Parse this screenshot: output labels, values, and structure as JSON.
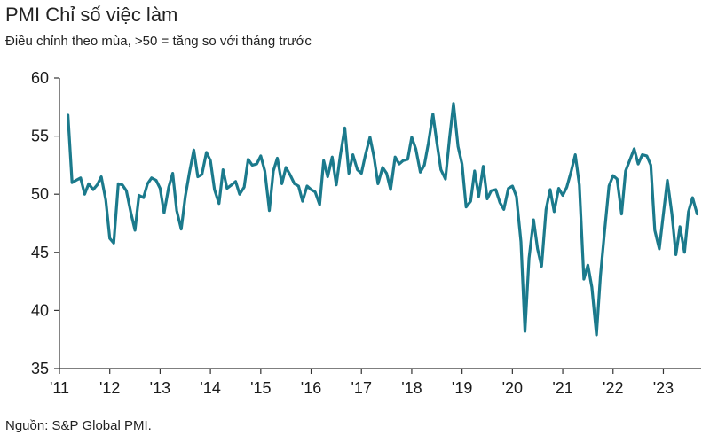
{
  "chart_data": {
    "type": "line",
    "title": "PMI Chỉ số việc làm",
    "subtitle": "Điều chỉnh theo mùa, >50 = tăng so với tháng trước",
    "source": "Nguồn: S&P Global PMI.",
    "xlabel": "",
    "ylabel": "",
    "ylim": [
      35,
      60
    ],
    "xlim": [
      2011.0,
      2023.75
    ],
    "yticks": [
      35,
      40,
      45,
      50,
      55,
      60
    ],
    "xticks": [
      {
        "value": 2011,
        "label": "'11"
      },
      {
        "value": 2012,
        "label": "'12"
      },
      {
        "value": 2013,
        "label": "'13"
      },
      {
        "value": 2014,
        "label": "'14"
      },
      {
        "value": 2015,
        "label": "'15"
      },
      {
        "value": 2016,
        "label": "'16"
      },
      {
        "value": 2017,
        "label": "'17"
      },
      {
        "value": 2018,
        "label": "'18"
      },
      {
        "value": 2019,
        "label": "'19"
      },
      {
        "value": 2020,
        "label": "'20"
      },
      {
        "value": 2021,
        "label": "'21"
      },
      {
        "value": 2022,
        "label": "'22"
      },
      {
        "value": 2023,
        "label": "'23"
      }
    ],
    "grid": false,
    "line_color": "#1b7a8c",
    "series": [
      {
        "x": [
          2011.17,
          2011.25,
          2011.33,
          2011.42,
          2011.5,
          2011.58,
          2011.67,
          2011.75,
          2011.83,
          2011.92,
          2012.0,
          2012.08,
          2012.17,
          2012.25,
          2012.33,
          2012.42,
          2012.5,
          2012.58,
          2012.67,
          2012.75,
          2012.83,
          2012.92,
          2013.0,
          2013.08,
          2013.17,
          2013.25,
          2013.33,
          2013.42,
          2013.5,
          2013.58,
          2013.67,
          2013.75,
          2013.83,
          2013.92,
          2014.0,
          2014.08,
          2014.17,
          2014.25,
          2014.33,
          2014.42,
          2014.5,
          2014.58,
          2014.67,
          2014.75,
          2014.83,
          2014.92,
          2015.0,
          2015.08,
          2015.17,
          2015.25,
          2015.33,
          2015.42,
          2015.5,
          2015.58,
          2015.67,
          2015.75,
          2015.83,
          2015.92,
          2016.0,
          2016.08,
          2016.17,
          2016.25,
          2016.33,
          2016.42,
          2016.5,
          2016.58,
          2016.67,
          2016.75,
          2016.83,
          2016.92,
          2017.0,
          2017.08,
          2017.17,
          2017.25,
          2017.33,
          2017.42,
          2017.5,
          2017.58,
          2017.67,
          2017.75,
          2017.83,
          2017.92,
          2018.0,
          2018.08,
          2018.17,
          2018.25,
          2018.33,
          2018.42,
          2018.5,
          2018.58,
          2018.67,
          2018.75,
          2018.83,
          2018.92,
          2019.0,
          2019.08,
          2019.17,
          2019.25,
          2019.33,
          2019.42,
          2019.5,
          2019.58,
          2019.67,
          2019.75,
          2019.83,
          2019.92,
          2020.0,
          2020.08,
          2020.17,
          2020.25,
          2020.33,
          2020.42,
          2020.5,
          2020.58,
          2020.67,
          2020.75,
          2020.83,
          2020.92,
          2021.0,
          2021.08,
          2021.17,
          2021.25,
          2021.33,
          2021.42,
          2021.5,
          2021.58,
          2021.67,
          2021.75,
          2021.83,
          2021.92,
          2022.0,
          2022.08,
          2022.17,
          2022.25,
          2022.33,
          2022.42,
          2022.5,
          2022.58,
          2022.67,
          2022.75,
          2022.83,
          2022.92,
          2023.0,
          2023.08,
          2023.17,
          2023.25,
          2023.33,
          2023.42,
          2023.5,
          2023.58,
          2023.67
        ],
        "y": [
          56.8,
          51.0,
          51.2,
          51.4,
          50.0,
          50.9,
          50.4,
          50.8,
          51.5,
          49.5,
          46.2,
          45.8,
          50.9,
          50.8,
          50.3,
          48.4,
          46.9,
          49.9,
          49.7,
          50.9,
          51.4,
          51.2,
          50.5,
          48.4,
          50.6,
          51.8,
          48.6,
          47.0,
          49.8,
          51.8,
          53.8,
          51.5,
          51.7,
          53.6,
          52.9,
          50.4,
          49.2,
          52.1,
          50.5,
          50.8,
          51.1,
          50.0,
          50.6,
          53.0,
          52.5,
          52.6,
          53.3,
          52.0,
          48.6,
          52.0,
          53.1,
          50.9,
          52.3,
          51.7,
          50.9,
          50.7,
          49.4,
          50.7,
          50.4,
          50.2,
          49.1,
          52.9,
          51.5,
          53.2,
          50.8,
          53.3,
          55.7,
          51.8,
          53.4,
          52.1,
          51.8,
          53.4,
          54.9,
          53.2,
          50.9,
          52.3,
          51.8,
          50.4,
          53.2,
          52.6,
          52.9,
          53.0,
          54.9,
          53.9,
          51.9,
          52.5,
          54.4,
          56.9,
          54.4,
          52.1,
          51.3,
          54.8,
          57.8,
          54.1,
          52.6,
          48.9,
          49.4,
          52.0,
          49.8,
          52.4,
          49.6,
          50.3,
          50.4,
          49.3,
          48.7,
          50.5,
          50.7,
          49.8,
          45.9,
          38.2,
          44.5,
          47.8,
          45.3,
          43.8,
          48.7,
          50.4,
          48.5,
          50.5,
          49.9,
          50.6,
          52.0,
          53.4,
          50.8,
          42.7,
          43.9,
          42.0,
          37.9,
          43.0,
          46.7,
          50.7,
          51.6,
          51.3,
          48.3,
          52.0,
          52.9,
          53.9,
          52.6,
          53.4,
          53.3,
          52.5,
          46.9,
          45.3,
          48.3,
          51.2,
          48.3,
          44.8,
          47.2,
          45.0,
          48.5,
          49.7,
          48.3
        ]
      }
    ]
  }
}
